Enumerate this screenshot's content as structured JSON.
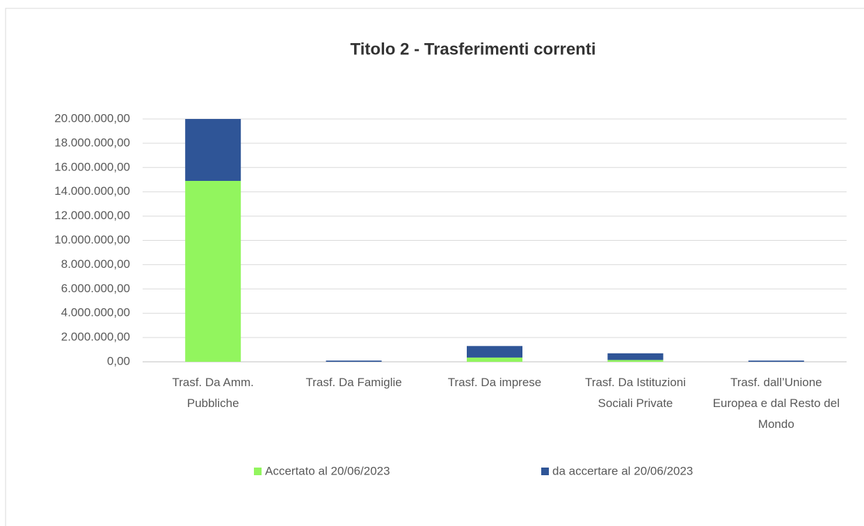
{
  "chart_data": {
    "type": "stacked_bar",
    "title": "Titolo 2 - Trasferimenti correnti",
    "categories": [
      "Trasf. Da Amm. Pubbliche",
      "Trasf. Da Famiglie",
      "Trasf. Da imprese",
      "Trasf. Da Istituzioni Sociali Private",
      "Trasf. dall’Unione Europea e dal Resto del Mondo"
    ],
    "series": [
      {
        "name": "Accertato al 20/06/2023",
        "color": "#92f55e",
        "values": [
          14900000,
          0,
          350000,
          150000,
          0
        ]
      },
      {
        "name": "da accertare al 20/06/2023",
        "color": "#2f5597",
        "values": [
          5100000,
          100000,
          950000,
          550000,
          100000
        ]
      }
    ],
    "ylim": [
      0,
      20000000
    ],
    "yticks": [
      {
        "value": 0,
        "label": "0,00"
      },
      {
        "value": 2000000,
        "label": "2.000.000,00"
      },
      {
        "value": 4000000,
        "label": "4.000.000,00"
      },
      {
        "value": 6000000,
        "label": "6.000.000,00"
      },
      {
        "value": 8000000,
        "label": "8.000.000,00"
      },
      {
        "value": 10000000,
        "label": "10.000.000,00"
      },
      {
        "value": 12000000,
        "label": "12.000.000,00"
      },
      {
        "value": 14000000,
        "label": "14.000.000,00"
      },
      {
        "value": 16000000,
        "label": "16.000.000,00"
      },
      {
        "value": 18000000,
        "label": "18.000.000,00"
      },
      {
        "value": 20000000,
        "label": "20.000.000,00"
      }
    ],
    "grid": true,
    "legend": "bottom"
  }
}
